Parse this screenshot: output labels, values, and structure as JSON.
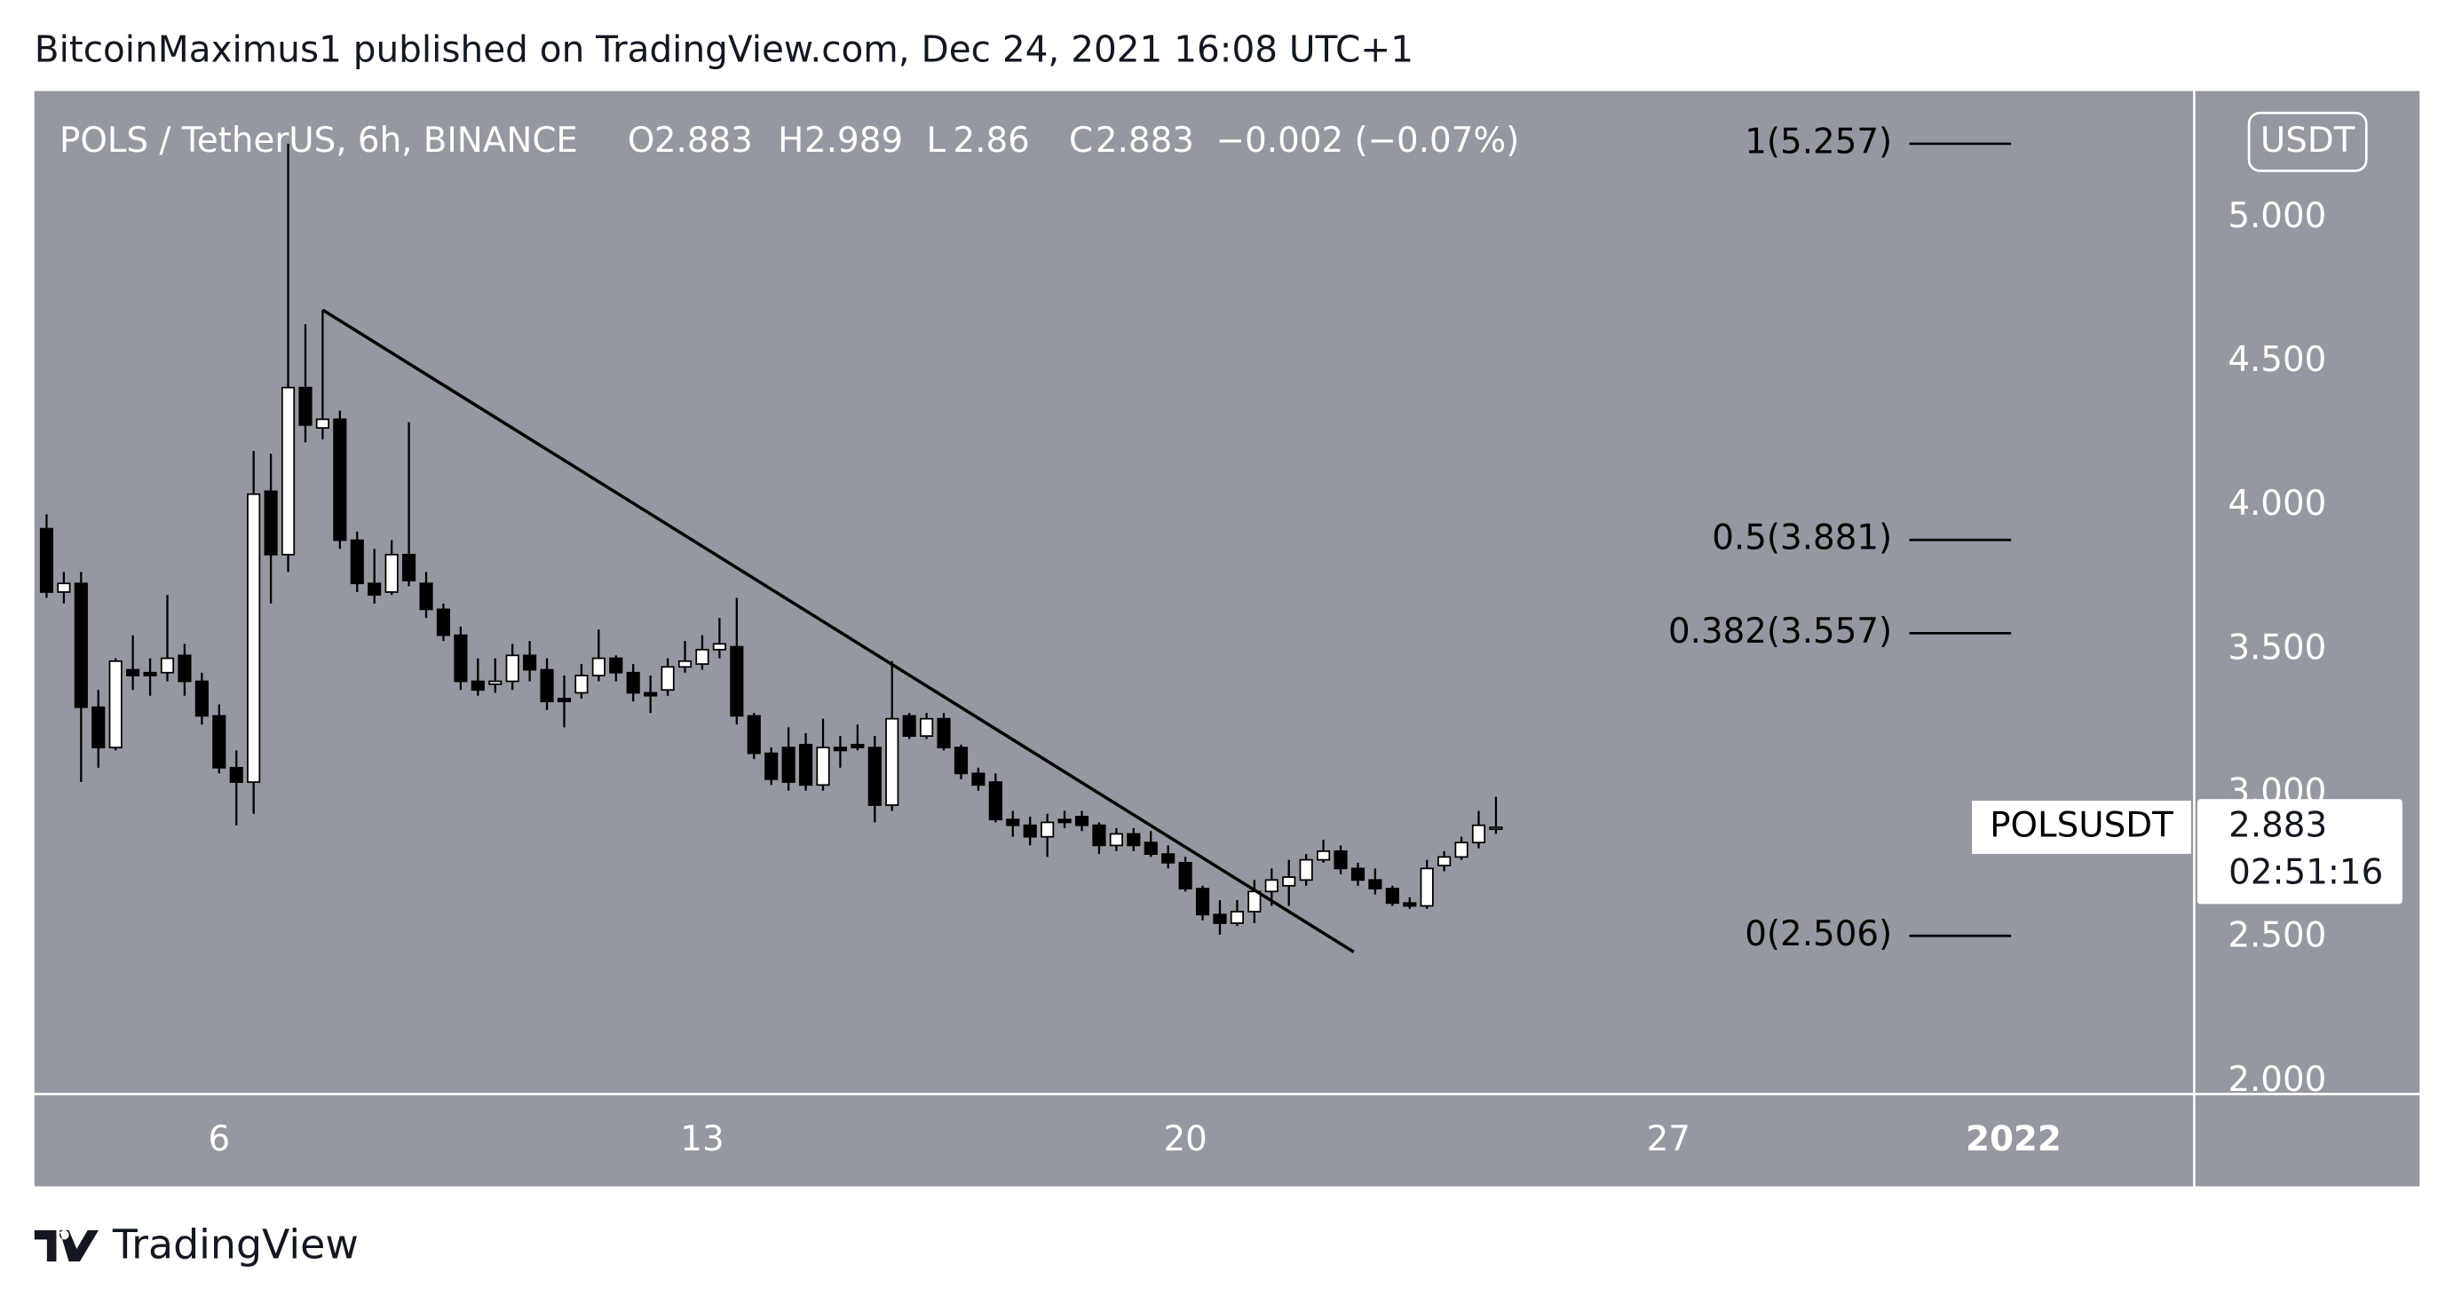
{
  "header": {
    "title": "BitcoinMaximus1 published on TradingView.com, Dec 24, 2021 16:08 UTC+1"
  },
  "footer": {
    "brand": "TradingView"
  },
  "chart_data": {
    "type": "candlestick",
    "legend": {
      "symbol": "POLS / TetherUS, 6h, BINANCE",
      "items": [
        {
          "label": "O",
          "value": 2.883
        },
        {
          "label": "H",
          "value": 2.989
        },
        {
          "label": "L",
          "value": 2.86
        },
        {
          "label": "C",
          "value": 2.883
        }
      ],
      "change": "−0.002 (−0.07%)"
    },
    "currency": "USDT",
    "price_label": {
      "name": "POLSUSDT",
      "value": 2.883,
      "countdown": "02:51:16"
    },
    "up_color": "#ffffff",
    "down_color": "#000000",
    "background": "#9598a1",
    "x": [
      3.5,
      3.75,
      4,
      4.25,
      4.5,
      4.75,
      5,
      5.25,
      5.5,
      5.75,
      6,
      6.25,
      6.5,
      6.75,
      7,
      7.25,
      7.5,
      7.75,
      8,
      8.25,
      8.5,
      8.75,
      9,
      9.25,
      9.5,
      9.75,
      10,
      10.25,
      10.5,
      10.75,
      11,
      11.25,
      11.5,
      11.75,
      12,
      12.25,
      12.5,
      12.75,
      13,
      13.25,
      13.5,
      13.75,
      14,
      14.25,
      14.5,
      14.75,
      15,
      15.25,
      15.5,
      15.75,
      16,
      16.25,
      16.5,
      16.75,
      17,
      17.25,
      17.5,
      17.75,
      18,
      18.25,
      18.5,
      18.75,
      19,
      19.25,
      19.5,
      19.75,
      20,
      20.25,
      20.5,
      20.75,
      21,
      21.25,
      21.5,
      21.75,
      22,
      22.25,
      22.5,
      22.75,
      23,
      23.25,
      23.5,
      23.75,
      24,
      24.25,
      24.5
    ],
    "open": [
      3.92,
      3.7,
      3.73,
      3.3,
      3.16,
      3.43,
      3.42,
      3.42,
      3.48,
      3.39,
      3.27,
      3.09,
      3.04,
      4.05,
      3.83,
      4.41,
      4.27,
      4.3,
      3.88,
      3.73,
      3.7,
      3.83,
      3.73,
      3.64,
      3.55,
      3.39,
      3.38,
      3.39,
      3.48,
      3.43,
      3.33,
      3.35,
      3.41,
      3.47,
      3.42,
      3.35,
      3.36,
      3.44,
      3.45,
      3.5,
      3.51,
      3.27,
      3.14,
      3.16,
      3.17,
      3.03,
      3.16,
      3.17,
      3.16,
      2.96,
      3.27,
      3.2,
      3.26,
      3.16,
      3.07,
      3.04,
      2.91,
      2.89,
      2.85,
      2.91,
      2.92,
      2.89,
      2.82,
      2.86,
      2.83,
      2.79,
      2.76,
      2.67,
      2.58,
      2.55,
      2.59,
      2.66,
      2.68,
      2.7,
      2.77,
      2.8,
      2.74,
      2.7,
      2.67,
      2.62,
      2.61,
      2.75,
      2.78,
      2.83,
      2.883
    ],
    "high": [
      3.97,
      3.77,
      3.77,
      3.36,
      3.47,
      3.55,
      3.47,
      3.69,
      3.52,
      3.42,
      3.31,
      3.15,
      4.19,
      4.18,
      5.257,
      4.63,
      4.68,
      4.33,
      3.91,
      3.85,
      3.88,
      4.29,
      3.77,
      3.66,
      3.58,
      3.47,
      3.47,
      3.52,
      3.53,
      3.47,
      3.41,
      3.45,
      3.57,
      3.48,
      3.45,
      3.41,
      3.47,
      3.53,
      3.55,
      3.61,
      3.68,
      3.28,
      3.16,
      3.23,
      3.21,
      3.26,
      3.2,
      3.24,
      3.2,
      3.46,
      3.28,
      3.28,
      3.28,
      3.17,
      3.09,
      3.07,
      2.94,
      2.92,
      2.93,
      2.94,
      2.94,
      2.9,
      2.88,
      2.88,
      2.87,
      2.82,
      2.78,
      2.68,
      2.63,
      2.63,
      2.7,
      2.74,
      2.77,
      2.79,
      2.84,
      2.82,
      2.76,
      2.74,
      2.68,
      2.64,
      2.77,
      2.8,
      2.85,
      2.94,
      2.989
    ],
    "low": [
      3.68,
      3.66,
      3.04,
      3.09,
      3.15,
      3.36,
      3.34,
      3.39,
      3.34,
      3.24,
      3.07,
      2.89,
      2.93,
      3.66,
      3.77,
      4.22,
      4.23,
      3.85,
      3.7,
      3.66,
      3.69,
      3.72,
      3.61,
      3.53,
      3.36,
      3.34,
      3.35,
      3.36,
      3.39,
      3.29,
      3.23,
      3.33,
      3.39,
      3.39,
      3.32,
      3.28,
      3.34,
      3.42,
      3.43,
      3.47,
      3.24,
      3.12,
      3.03,
      3.01,
      3.01,
      3.01,
      3.09,
      3.15,
      2.9,
      2.94,
      3.19,
      3.19,
      3.15,
      3.05,
      3.01,
      2.9,
      2.85,
      2.82,
      2.78,
      2.88,
      2.87,
      2.79,
      2.8,
      2.8,
      2.78,
      2.74,
      2.66,
      2.56,
      2.51,
      2.54,
      2.55,
      2.61,
      2.61,
      2.68,
      2.76,
      2.72,
      2.68,
      2.65,
      2.61,
      2.6,
      2.6,
      2.73,
      2.77,
      2.81,
      2.86
    ],
    "close": [
      3.7,
      3.73,
      3.3,
      3.16,
      3.46,
      3.41,
      3.41,
      3.47,
      3.39,
      3.27,
      3.09,
      3.04,
      4.04,
      3.83,
      4.41,
      4.28,
      4.3,
      3.88,
      3.73,
      3.69,
      3.83,
      3.74,
      3.64,
      3.55,
      3.39,
      3.36,
      3.39,
      3.48,
      3.43,
      3.32,
      3.32,
      3.41,
      3.47,
      3.42,
      3.35,
      3.34,
      3.44,
      3.46,
      3.5,
      3.52,
      3.27,
      3.14,
      3.05,
      3.04,
      3.03,
      3.16,
      3.15,
      3.16,
      2.96,
      3.26,
      3.2,
      3.26,
      3.16,
      3.07,
      3.03,
      2.91,
      2.89,
      2.85,
      2.9,
      2.9,
      2.89,
      2.82,
      2.86,
      2.82,
      2.79,
      2.76,
      2.67,
      2.58,
      2.55,
      2.59,
      2.66,
      2.7,
      2.71,
      2.77,
      2.8,
      2.74,
      2.7,
      2.67,
      2.62,
      2.61,
      2.74,
      2.78,
      2.83,
      2.89,
      2.883
    ],
    "trendline": {
      "x": [
        7.5,
        22.44
      ],
      "y": [
        4.68,
        2.45
      ]
    },
    "fib_levels": [
      {
        "label": "1(5.257)",
        "value": 5.257
      },
      {
        "label": "0.5(3.881)",
        "value": 3.881
      },
      {
        "label": "0.382(3.557)",
        "value": 3.557
      },
      {
        "label": "0(2.506)",
        "value": 2.506
      }
    ],
    "xlim": [
      3.324,
      34.617
    ],
    "ylim": [
      1.962,
      5.44
    ],
    "xticks": [
      6,
      13,
      20,
      27,
      {
        "value": 32,
        "label": "2022"
      }
    ],
    "yticks": [
      {
        "value": 5,
        "label": "5.000"
      },
      {
        "value": 4.5,
        "label": "4.500"
      },
      {
        "value": 4,
        "label": "4.000"
      },
      {
        "value": 3.5,
        "label": "3.500"
      },
      {
        "value": 3,
        "label": "3.000"
      },
      {
        "value": 2.5,
        "label": "2.500"
      },
      {
        "value": 2,
        "label": "2.000"
      }
    ]
  }
}
